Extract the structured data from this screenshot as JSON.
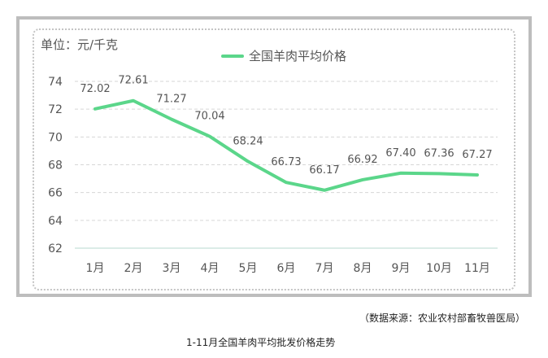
{
  "chart_data": {
    "type": "line",
    "title": "",
    "unit_label": "单位：元/千克",
    "xlabel": "",
    "ylabel": "元/千克",
    "categories": [
      "1月",
      "2月",
      "3月",
      "4月",
      "5月",
      "6月",
      "7月",
      "8月",
      "9月",
      "10月",
      "11月"
    ],
    "series": [
      {
        "name": "全国羊肉平均价格",
        "color": "#5bd68a",
        "values": [
          72.02,
          72.61,
          71.27,
          70.04,
          68.24,
          66.73,
          66.17,
          66.92,
          67.4,
          67.36,
          67.27
        ]
      }
    ],
    "ylim": [
      62,
      74
    ],
    "yticks": [
      62,
      64,
      66,
      68,
      70,
      72,
      74
    ],
    "grid": true,
    "legend_position": "top-center",
    "data_labels": true
  },
  "header": {
    "unit": "单位：元/千克",
    "legend": "全国羊肉平均价格"
  },
  "footer": {
    "source": "（数据来源：农业农村部畜牧兽医局）",
    "caption": "1-11月全国羊肉平均批发价格走势"
  }
}
